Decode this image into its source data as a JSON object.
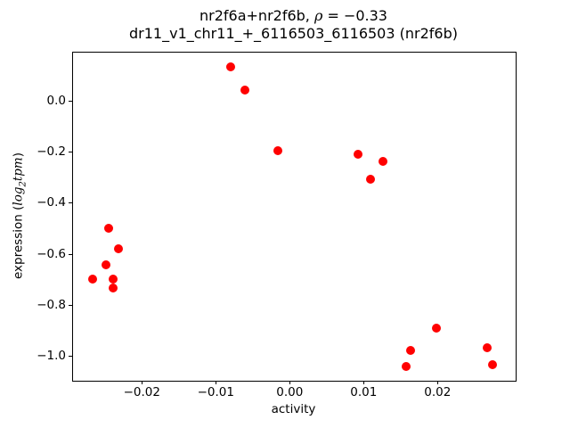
{
  "title": {
    "pre": "nr2f6a+nr2f6b, ",
    "rho": "ρ",
    "post": " = −0.33"
  },
  "subtitle": "dr11_v1_chr11_+_6116503_6116503 (nr2f6b)",
  "x_axis": {
    "label": "activity"
  },
  "y_axis": {
    "label_pre": "expression (",
    "math_word1": "log",
    "math_sub": "2",
    "math_word2": "tpm",
    "label_post": ")"
  },
  "chart_data": {
    "type": "scatter",
    "title": "nr2f6a+nr2f6b, ρ = −0.33",
    "subtitle": "dr11_v1_chr11_+_6116503_6116503 (nr2f6b)",
    "correlation_rho": -0.33,
    "xlabel": "activity",
    "ylabel": "expression (log2 tpm)",
    "marker_color": "#ff0000",
    "marker_diameter_px": 10,
    "grid": false,
    "legend": false,
    "xlim": [
      -0.029434,
      0.030446
    ],
    "ylim": [
      -1.09527,
      0.19369
    ],
    "x_ticks": [
      {
        "value": -0.02,
        "label": "−0.02"
      },
      {
        "value": -0.01,
        "label": "−0.01"
      },
      {
        "value": 0.0,
        "label": "0.00"
      },
      {
        "value": 0.01,
        "label": "0.01"
      },
      {
        "value": 0.02,
        "label": "0.02"
      }
    ],
    "y_ticks": [
      {
        "value": 0.0,
        "label": "0.0"
      },
      {
        "value": -0.2,
        "label": "−0.2"
      },
      {
        "value": -0.4,
        "label": "−0.4"
      },
      {
        "value": -0.6,
        "label": "−0.6"
      },
      {
        "value": -0.8,
        "label": "−0.8"
      },
      {
        "value": -1.0,
        "label": "−1.0"
      }
    ],
    "points": [
      [
        -0.008,
        0.135
      ],
      [
        -0.0061,
        0.044
      ],
      [
        -0.0016,
        -0.196
      ],
      [
        0.0092,
        -0.209
      ],
      [
        0.0126,
        -0.236
      ],
      [
        0.0109,
        -0.306
      ],
      [
        -0.0245,
        -0.499
      ],
      [
        -0.0232,
        -0.58
      ],
      [
        -0.0249,
        -0.642
      ],
      [
        -0.0267,
        -0.698
      ],
      [
        -0.0239,
        -0.699
      ],
      [
        -0.0239,
        -0.736
      ],
      [
        0.0198,
        -0.893
      ],
      [
        0.0164,
        -0.979
      ],
      [
        0.0158,
        -1.042
      ],
      [
        0.0267,
        -0.968
      ],
      [
        0.0274,
        -1.037
      ]
    ]
  }
}
